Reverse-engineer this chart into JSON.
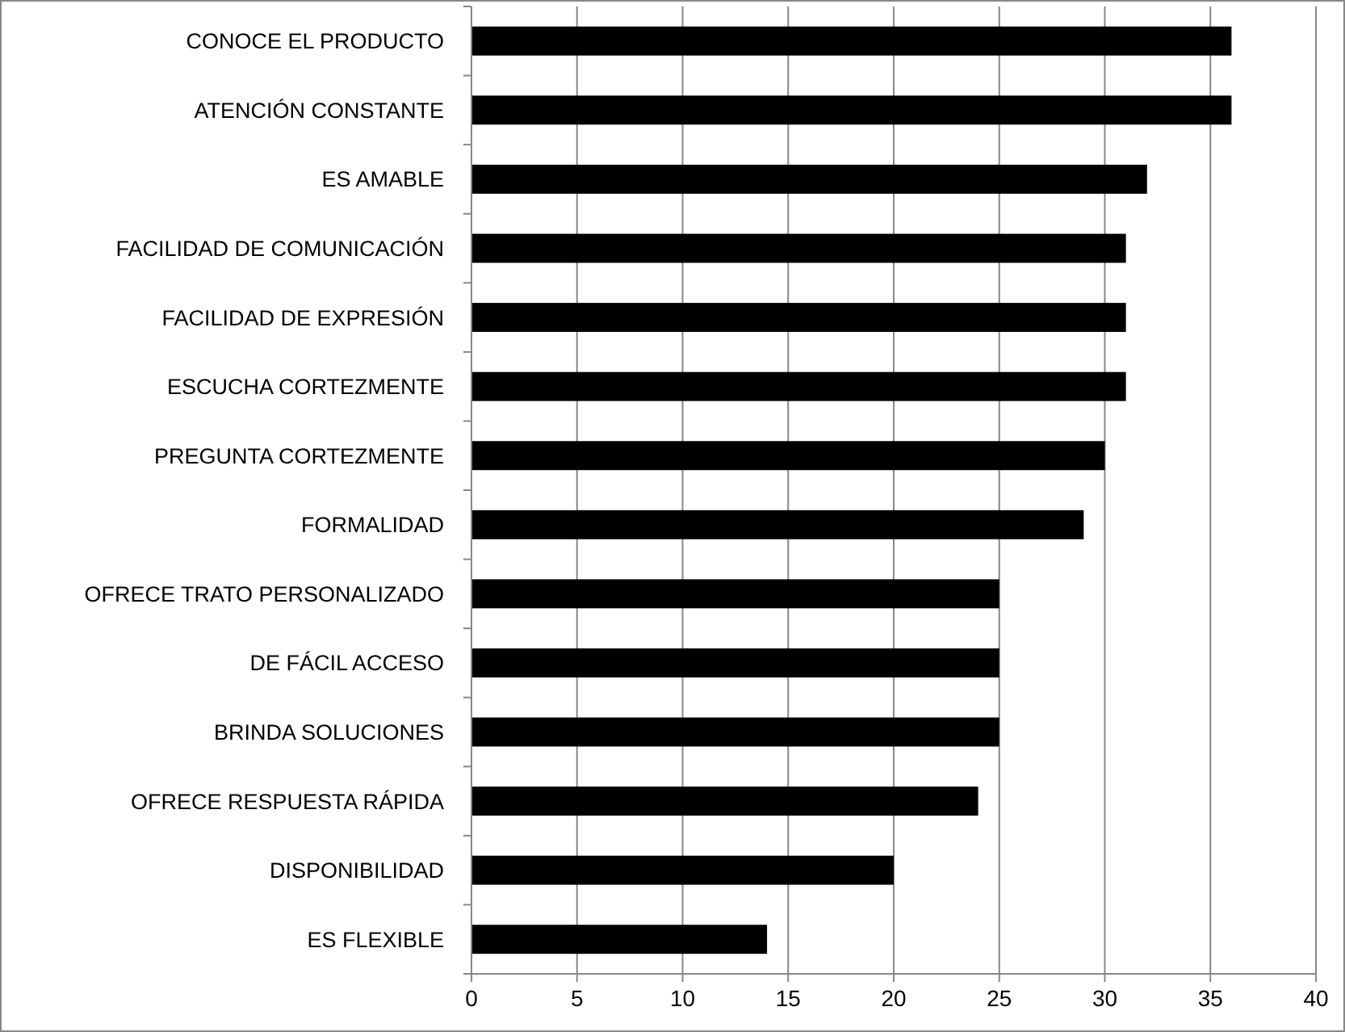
{
  "chart_data": {
    "type": "bar",
    "orientation": "horizontal",
    "categories": [
      "CONOCE EL PRODUCTO",
      "ATENCIÓN CONSTANTE",
      "ES AMABLE",
      "FACILIDAD DE COMUNICACIÓN",
      "FACILIDAD DE EXPRESIÓN",
      "ESCUCHA CORTEZMENTE",
      "PREGUNTA CORTEZMENTE",
      "FORMALIDAD",
      "OFRECE TRATO PERSONALIZADO",
      "DE FÁCIL ACCESO",
      "BRINDA SOLUCIONES",
      "OFRECE RESPUESTA RÁPIDA",
      "DISPONIBILIDAD",
      "ES FLEXIBLE"
    ],
    "values": [
      36,
      36,
      32,
      31,
      31,
      31,
      30,
      29,
      25,
      25,
      25,
      24,
      20,
      14
    ],
    "color": "#000000",
    "xlim": [
      0,
      40
    ],
    "xticks": [
      0,
      5,
      10,
      15,
      20,
      25,
      30,
      35,
      40
    ],
    "grid": "x"
  }
}
